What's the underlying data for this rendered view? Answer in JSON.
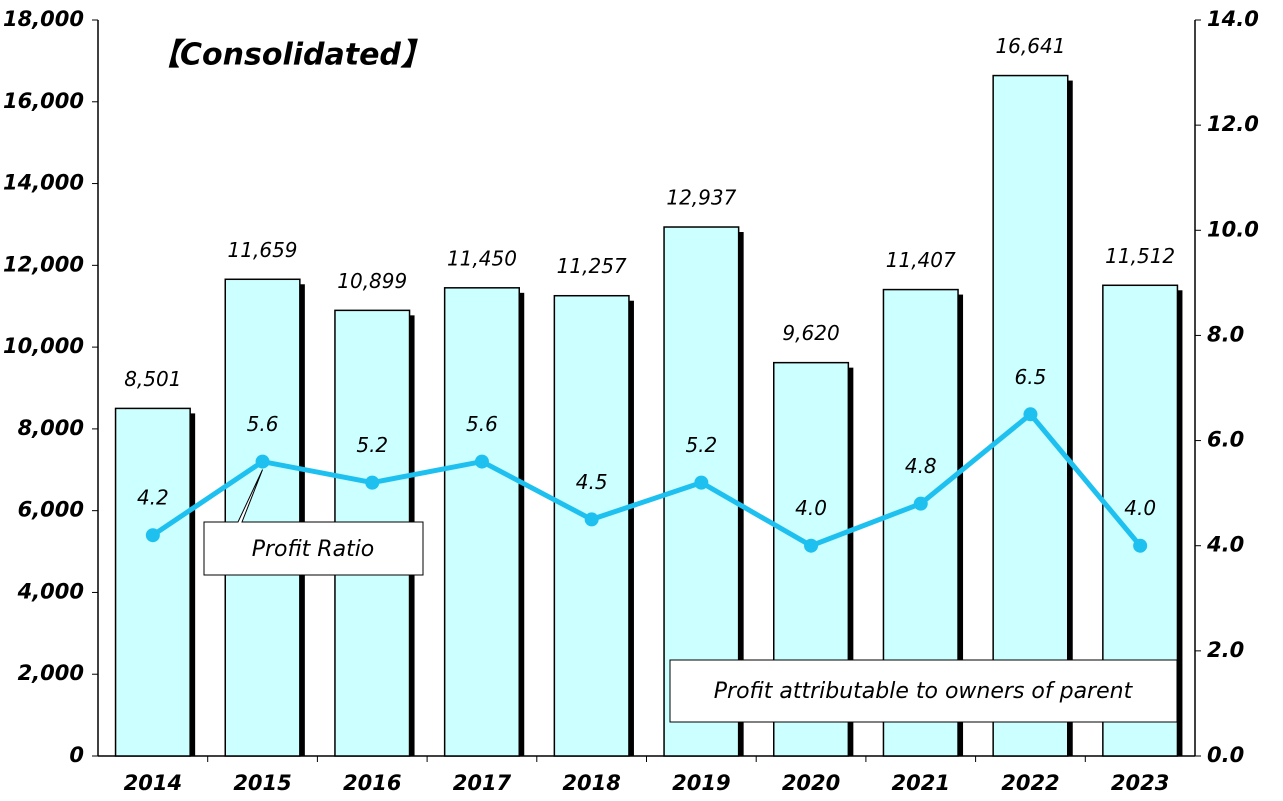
{
  "chart_data": {
    "type": "bar",
    "annotations": [
      "【Consolidated】"
    ],
    "categories": [
      "2014",
      "2015",
      "2016",
      "2017",
      "2018",
      "2019",
      "2020",
      "2021",
      "2022",
      "2023"
    ],
    "series": [
      {
        "name": "Profit attributable to owners of parent",
        "type": "bar",
        "color": "#ccffff",
        "values": [
          8501,
          11659,
          10899,
          11450,
          11257,
          12937,
          9620,
          11407,
          16641,
          11512
        ],
        "value_labels": [
          "8,501",
          "11,659",
          "10,899",
          "11,450",
          "11,257",
          "12,937",
          "9,620",
          "11,407",
          "16,641",
          "11,512"
        ]
      },
      {
        "name": "Profit Ratio",
        "type": "line",
        "axis": "y2",
        "color": "#1ec0f0",
        "values": [
          4.2,
          5.6,
          5.2,
          5.6,
          4.5,
          5.2,
          4.0,
          4.8,
          6.5,
          4.0
        ],
        "value_labels": [
          "4.2",
          "5.6",
          "5.2",
          "5.6",
          "4.5",
          "5.2",
          "4.0",
          "4.8",
          "6.5",
          "4.0"
        ]
      }
    ],
    "ylim": [
      0,
      18000
    ],
    "yticks": [
      {
        "value": 0,
        "label": "0"
      },
      {
        "value": 2000,
        "label": "2,000"
      },
      {
        "value": 4000,
        "label": "4,000"
      },
      {
        "value": 6000,
        "label": "6,000"
      },
      {
        "value": 8000,
        "label": "8,000"
      },
      {
        "value": 10000,
        "label": "10,000"
      },
      {
        "value": 12000,
        "label": "12,000"
      },
      {
        "value": 14000,
        "label": "14,000"
      },
      {
        "value": 16000,
        "label": "16,000"
      },
      {
        "value": 18000,
        "label": "18,000"
      }
    ],
    "y2lim": [
      0,
      14
    ],
    "y2ticks": [
      {
        "value": 0,
        "label": "0.0"
      },
      {
        "value": 2,
        "label": "2.0"
      },
      {
        "value": 4,
        "label": "4.0"
      },
      {
        "value": 6,
        "label": "6.0"
      },
      {
        "value": 8,
        "label": "8.0"
      },
      {
        "value": 10,
        "label": "10.0"
      },
      {
        "value": 12,
        "label": "12.0"
      },
      {
        "value": 14,
        "label": "14.0"
      }
    ]
  }
}
